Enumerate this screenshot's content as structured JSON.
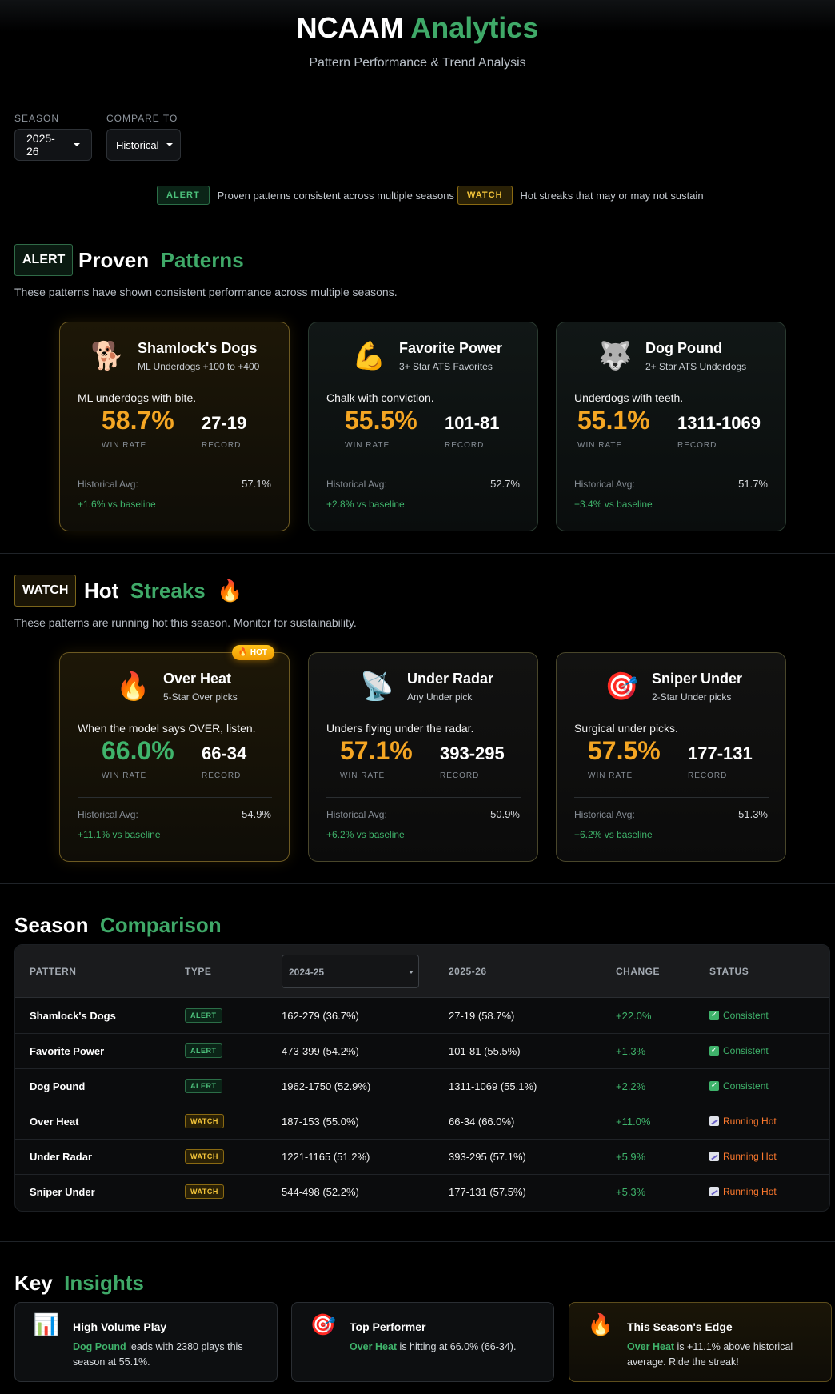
{
  "header": {
    "title_main": "NCAAM",
    "title_accent": "Analytics",
    "subtitle": "Pattern Performance & Trend Analysis"
  },
  "filters": {
    "season_label": "SEASON",
    "season_value": "2025-26",
    "compare_label": "COMPARE TO",
    "compare_value": "Historical"
  },
  "legend": {
    "alert_badge": "ALERT",
    "alert_text": "Proven patterns consistent across multiple seasons",
    "watch_badge": "WATCH",
    "watch_text": "Hot streaks that may or may not sustain"
  },
  "proven": {
    "badge": "ALERT",
    "title_main": "Proven",
    "title_accent": "Patterns",
    "description": "These patterns have shown consistent performance across multiple seasons.",
    "cards": [
      {
        "icon": "🐕",
        "name": "Shamlock's Dogs",
        "sub": "ML Underdogs +100 to +400",
        "tagline": "ML underdogs with bite.",
        "rate": "58.7%",
        "record": "27-19",
        "rate_label": "WIN RATE",
        "record_label": "RECORD",
        "hist_label": "Historical Avg:",
        "hist_value": "57.1%",
        "baseline": "+1.6% vs baseline"
      },
      {
        "icon": "💪",
        "name": "Favorite Power",
        "sub": "3+ Star ATS Favorites",
        "tagline": "Chalk with conviction.",
        "rate": "55.5%",
        "record": "101-81",
        "rate_label": "WIN RATE",
        "record_label": "RECORD",
        "hist_label": "Historical Avg:",
        "hist_value": "52.7%",
        "baseline": "+2.8% vs baseline"
      },
      {
        "icon": "🐺",
        "name": "Dog Pound",
        "sub": "2+ Star ATS Underdogs",
        "tagline": "Underdogs with teeth.",
        "rate": "55.1%",
        "record": "1311-1069",
        "rate_label": "WIN RATE",
        "record_label": "RECORD",
        "hist_label": "Historical Avg:",
        "hist_value": "51.7%",
        "baseline": "+3.4% vs baseline"
      }
    ]
  },
  "hot": {
    "badge": "WATCH",
    "title_main": "Hot",
    "title_accent": "Streaks",
    "title_icon": "🔥",
    "description": "These patterns are running hot this season. Monitor for sustainability.",
    "hot_badge": "🔥 HOT",
    "cards": [
      {
        "icon": "🔥",
        "name": "Over Heat",
        "sub": "5-Star Over picks",
        "tagline": "When the model says OVER, listen.",
        "rate": "66.0%",
        "record": "66-34",
        "rate_label": "WIN RATE",
        "record_label": "RECORD",
        "hist_label": "Historical Avg:",
        "hist_value": "54.9%",
        "baseline": "+11.1% vs baseline"
      },
      {
        "icon": "📡",
        "name": "Under Radar",
        "sub": "Any Under pick",
        "tagline": "Unders flying under the radar.",
        "rate": "57.1%",
        "record": "393-295",
        "rate_label": "WIN RATE",
        "record_label": "RECORD",
        "hist_label": "Historical Avg:",
        "hist_value": "50.9%",
        "baseline": "+6.2% vs baseline"
      },
      {
        "icon": "🎯",
        "name": "Sniper Under",
        "sub": "2-Star Under picks",
        "tagline": "Surgical under picks.",
        "rate": "57.5%",
        "record": "177-131",
        "rate_label": "WIN RATE",
        "record_label": "RECORD",
        "hist_label": "Historical Avg:",
        "hist_value": "51.3%",
        "baseline": "+6.2% vs baseline"
      }
    ]
  },
  "comparison": {
    "title_main": "Season",
    "title_accent": "Comparison",
    "columns": {
      "pattern": "PATTERN",
      "type": "TYPE",
      "prev_season": "2024-25",
      "curr_season": "2025-26",
      "change": "CHANGE",
      "status": "STATUS"
    },
    "rows": [
      {
        "pattern": "Shamlock's Dogs",
        "type": "ALERT",
        "prev": "162-279 (36.7%)",
        "curr": "27-19 (58.7%)",
        "change": "+22.0%",
        "status": "Consistent"
      },
      {
        "pattern": "Favorite Power",
        "type": "ALERT",
        "prev": "473-399 (54.2%)",
        "curr": "101-81 (55.5%)",
        "change": "+1.3%",
        "status": "Consistent"
      },
      {
        "pattern": "Dog Pound",
        "type": "ALERT",
        "prev": "1962-1750 (52.9%)",
        "curr": "1311-1069 (55.1%)",
        "change": "+2.2%",
        "status": "Consistent"
      },
      {
        "pattern": "Over Heat",
        "type": "WATCH",
        "prev": "187-153 (55.0%)",
        "curr": "66-34 (66.0%)",
        "change": "+11.0%",
        "status": "Running Hot"
      },
      {
        "pattern": "Under Radar",
        "type": "WATCH",
        "prev": "1221-1165 (51.2%)",
        "curr": "393-295 (57.1%)",
        "change": "+5.9%",
        "status": "Running Hot"
      },
      {
        "pattern": "Sniper Under",
        "type": "WATCH",
        "prev": "544-498 (52.2%)",
        "curr": "177-131 (57.5%)",
        "change": "+5.3%",
        "status": "Running Hot"
      }
    ],
    "status_colors": {
      "Consistent": "#3fb36b",
      "Running Hot": "#ff7a2e"
    }
  },
  "insights": {
    "title_main": "Key",
    "title_accent": "Insights",
    "cards": [
      {
        "icon": "📊",
        "title": "High Volume Play",
        "highlight": "Dog Pound",
        "text": " leads with 2380 plays this season at 55.1%."
      },
      {
        "icon": "🎯",
        "title": "Top Performer",
        "highlight": "Over Heat",
        "text": " is hitting at 66.0% (66-34)."
      },
      {
        "icon": "🔥",
        "title": "This Season's Edge",
        "highlight": "Over Heat",
        "text": " is +11.1% above historical average. Ride the streak!"
      }
    ]
  },
  "colors": {
    "accent_green": "#3fa968",
    "rate_orange": "#f5a623",
    "rate_green": "#3fb36b",
    "alert_badge": "#4cc07b",
    "watch_badge": "#f3c43a"
  }
}
